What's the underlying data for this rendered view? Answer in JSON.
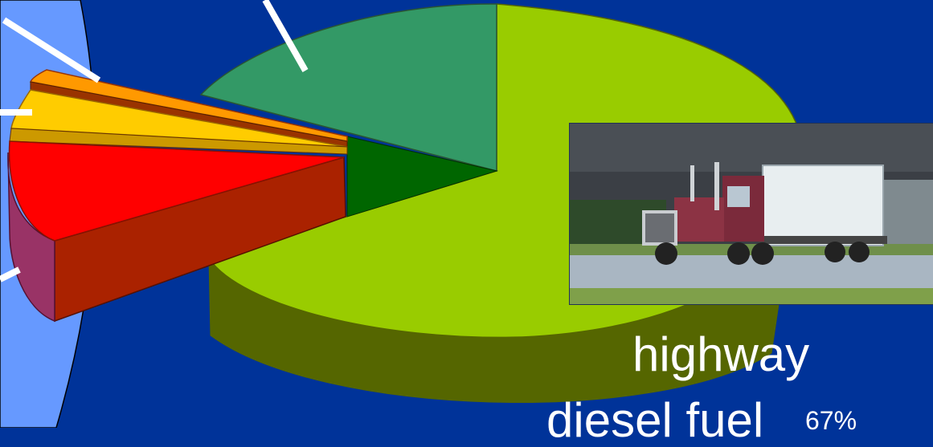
{
  "colors": {
    "background": "#003399",
    "side_panel": "#6699FF",
    "pointer": "#FFFFFF",
    "label_text": "#FFFFFF"
  },
  "chart_data": {
    "type": "pie",
    "style": "3d-exploded",
    "slices": [
      {
        "label": "highway diesel fuel",
        "value": 67,
        "value_label": "67%",
        "color": "#99CC00",
        "side_color": "#556600",
        "explode": "none"
      },
      {
        "label": "",
        "value": 19,
        "value_label": "",
        "color": "#339966",
        "side_color": "#006600",
        "explode": "none"
      },
      {
        "label": "",
        "value": 2,
        "value_label": "",
        "color": "#FF9900",
        "side_color": "#993300",
        "explode": "left"
      },
      {
        "label": "",
        "value": 2,
        "value_label": "",
        "color": "#FFCC00",
        "side_color": "#CC9900",
        "explode": "left"
      },
      {
        "label": "",
        "value": 10,
        "value_label": "",
        "color": "#FF0000",
        "side_color": "#AA2200",
        "explode": "left"
      }
    ],
    "title": "",
    "legend": "none"
  },
  "photo": {
    "subject": "semi-truck on highway",
    "alt": ""
  }
}
